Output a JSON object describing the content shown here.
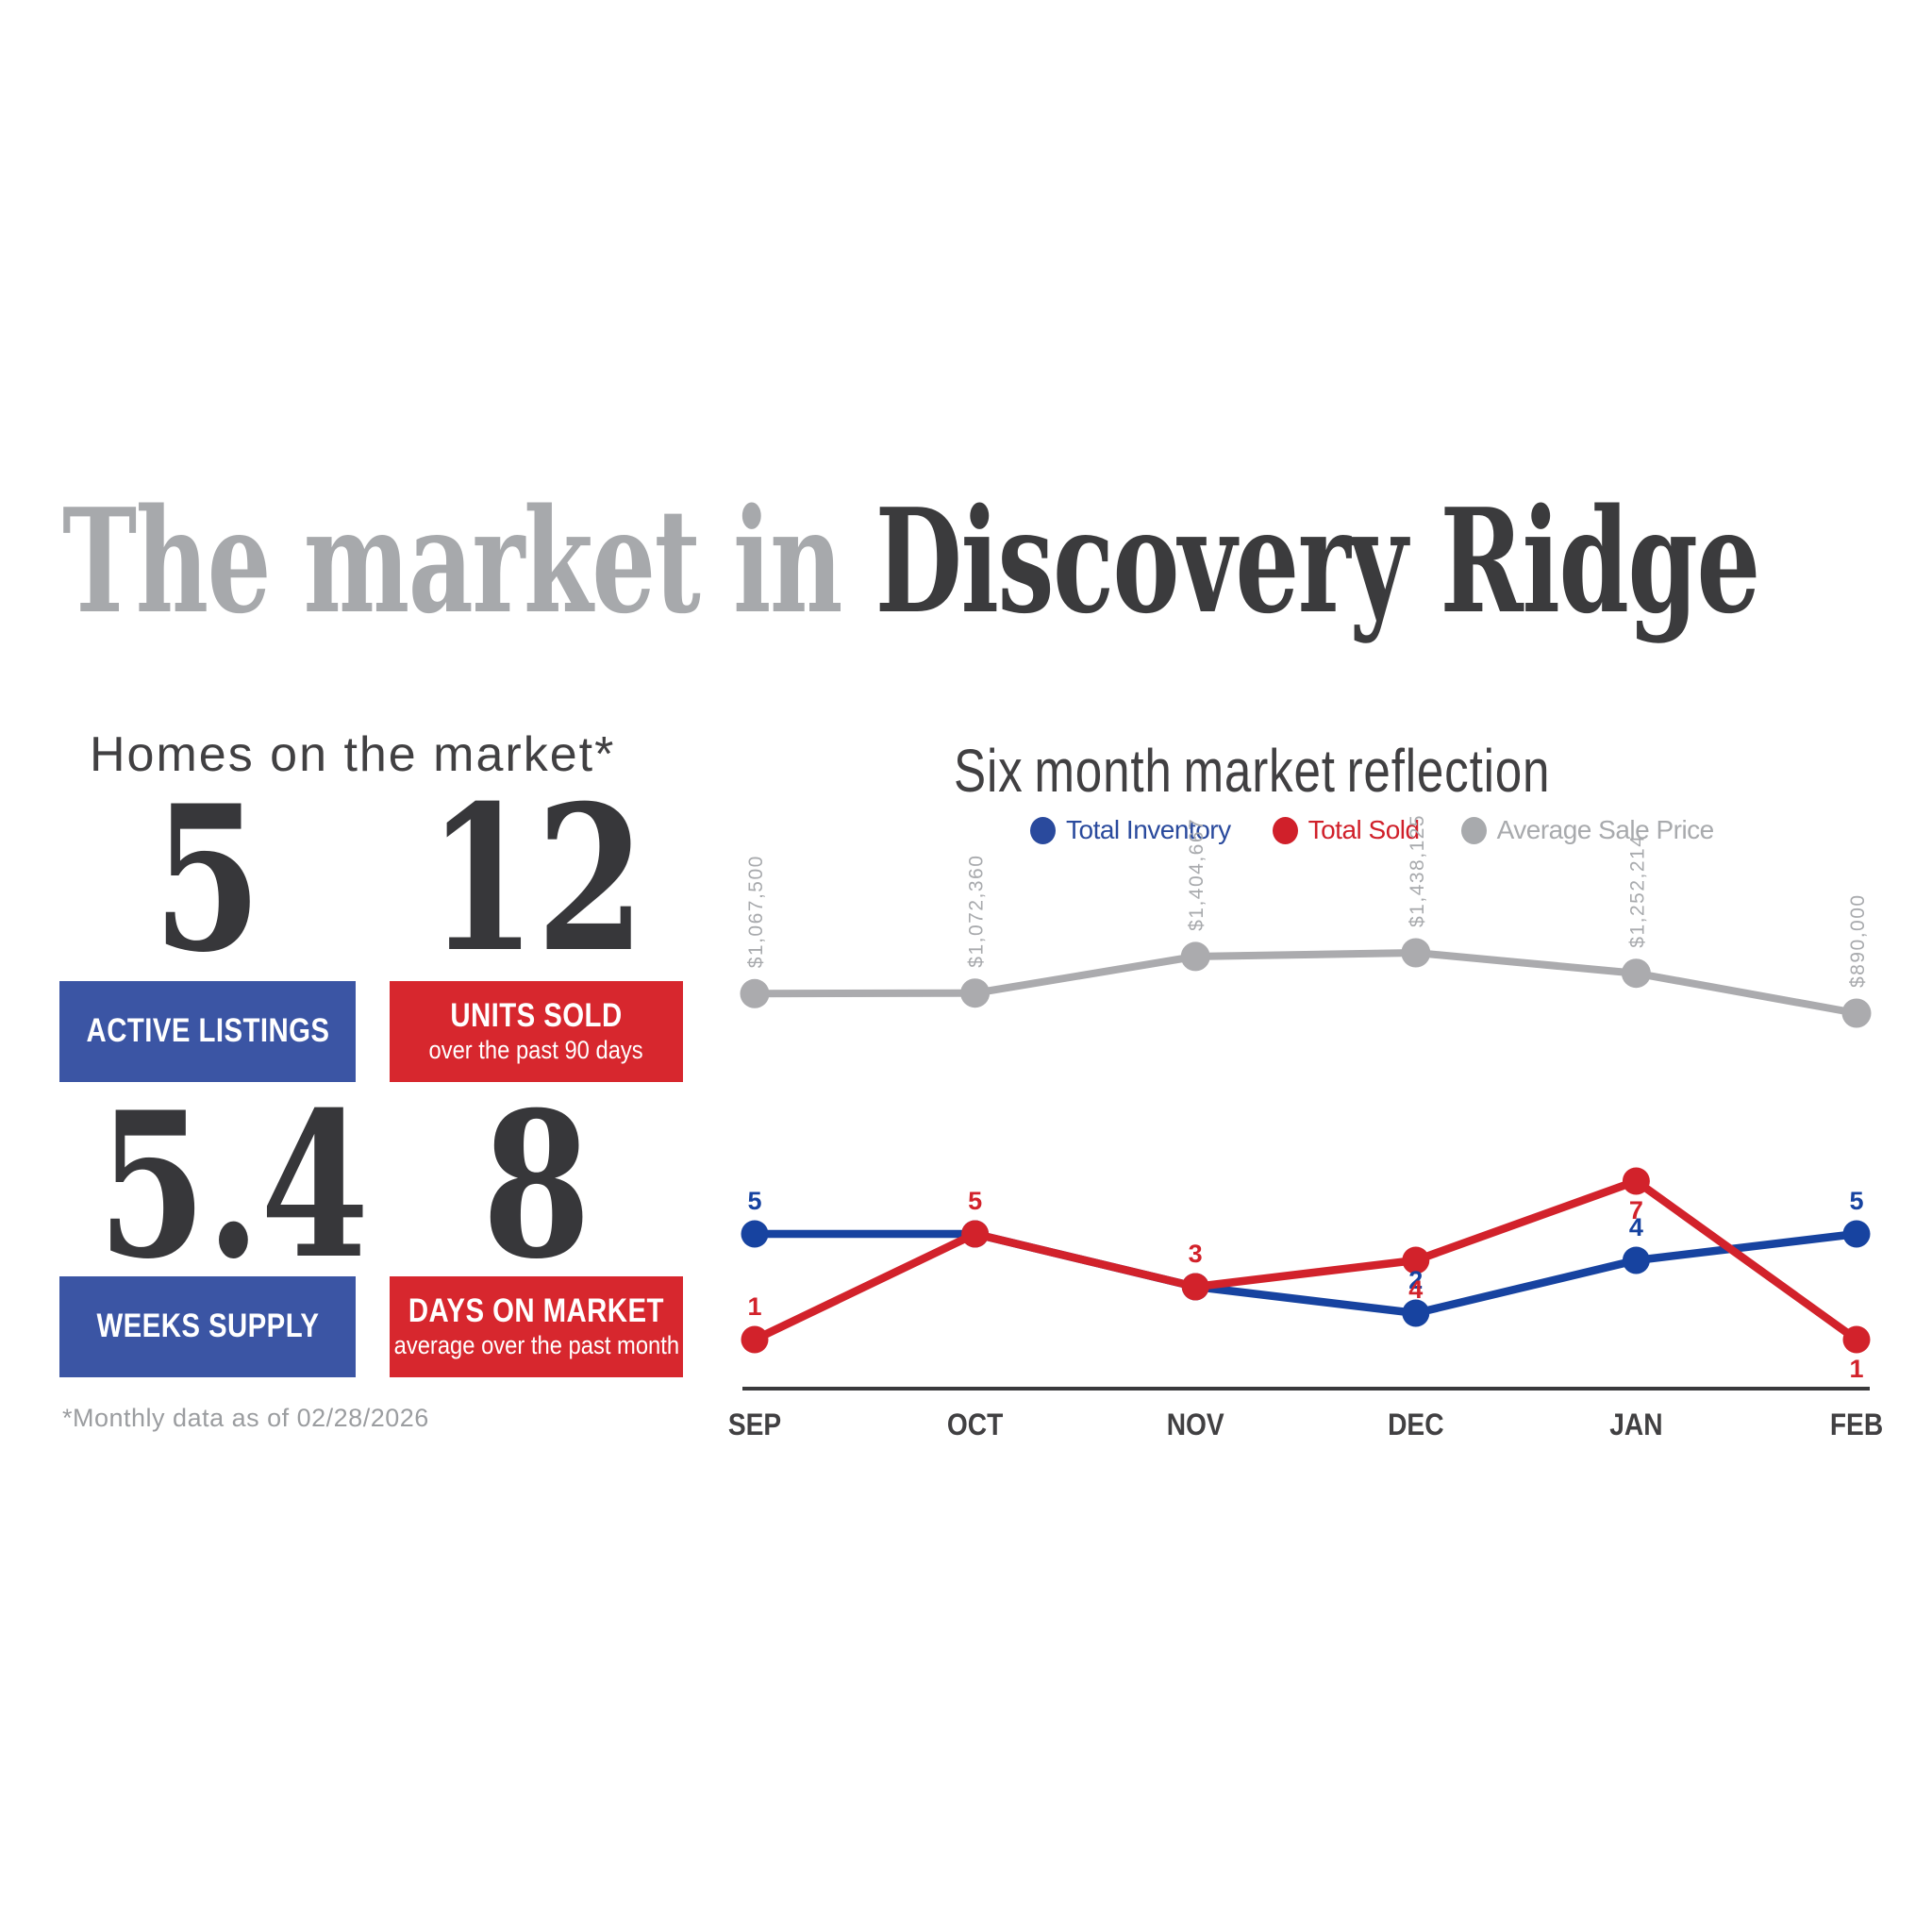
{
  "title": {
    "prefix": "The market in ",
    "emphasis": "Discovery Ridge"
  },
  "stats": {
    "heading": "Homes on the market*",
    "cards": [
      {
        "value": "5",
        "label": "ACTIVE LISTINGS",
        "sublabel": "",
        "theme": "blue"
      },
      {
        "value": "12",
        "label": "UNITS SOLD",
        "sublabel": "over the past 90 days",
        "theme": "red"
      },
      {
        "value": "5.4",
        "label": "WEEKS SUPPLY",
        "sublabel": "",
        "theme": "blue"
      },
      {
        "value": "8",
        "label": "DAYS ON MARKET",
        "sublabel": "average over the past month",
        "theme": "red"
      }
    ],
    "footnote": "*Monthly data as of 02/28/2026"
  },
  "chart": {
    "title": "Six month market reflection",
    "legend": [
      {
        "label": "Total Inventory",
        "color": "#2a4a9d"
      },
      {
        "label": "Total Sold",
        "color": "#d0202a"
      },
      {
        "label": "Average Sale Price",
        "color": "#a8aaad"
      }
    ]
  },
  "chart_data": {
    "type": "line",
    "title": "Six month market reflection",
    "categories": [
      "SEP",
      "OCT",
      "NOV",
      "DEC",
      "JAN",
      "FEB"
    ],
    "series": [
      {
        "name": "Total Inventory",
        "color": "#1743a0",
        "values": [
          5,
          5,
          3,
          2,
          4,
          5
        ],
        "point_labels": [
          {
            "month": 0,
            "text": "5",
            "placement": "above"
          },
          {
            "month": 3,
            "text": "2",
            "placement": "above"
          },
          {
            "month": 4,
            "text": "4",
            "placement": "above"
          },
          {
            "month": 5,
            "text": "5",
            "placement": "above"
          }
        ]
      },
      {
        "name": "Total Sold",
        "color": "#d2222b",
        "values": [
          1,
          5,
          3,
          4,
          7,
          1
        ],
        "point_labels": [
          {
            "month": 0,
            "text": "1",
            "placement": "above"
          },
          {
            "month": 1,
            "text": "5",
            "placement": "above"
          },
          {
            "month": 2,
            "text": "3",
            "placement": "above"
          },
          {
            "month": 3,
            "text": "4",
            "placement": "below"
          },
          {
            "month": 4,
            "text": "7",
            "placement": "below"
          },
          {
            "month": 5,
            "text": "1",
            "placement": "below"
          }
        ]
      },
      {
        "name": "Average Sale Price",
        "color": "#ababae",
        "values": [
          1067500,
          1072360,
          1404667,
          1438125,
          1252214,
          890000
        ],
        "point_labels": [
          {
            "month": 0,
            "text": "$1,067,500"
          },
          {
            "month": 1,
            "text": "$1,072,360"
          },
          {
            "month": 2,
            "text": "$1,404,667"
          },
          {
            "month": 3,
            "text": "$1,438,125"
          },
          {
            "month": 4,
            "text": "$1,252,214"
          },
          {
            "month": 5,
            "text": "$890,000"
          }
        ]
      }
    ],
    "x_axis": {
      "baseline": true
    },
    "y_axis": {
      "count_range": [
        0,
        8
      ],
      "price_range": [
        890000,
        1438125
      ],
      "gridlines": false
    },
    "legend_position": "top"
  },
  "colors": {
    "title_muted": "#a7a9ac",
    "title_dark": "#3b3b3d",
    "heading": "#414042",
    "blue_box": "#3b55a4",
    "red_box": "#d7272e",
    "blue_line": "#1743a0",
    "red_line": "#d2222b",
    "gray_line": "#ababae",
    "footnote": "#9b9da0",
    "axis": "#3a3a3c"
  }
}
